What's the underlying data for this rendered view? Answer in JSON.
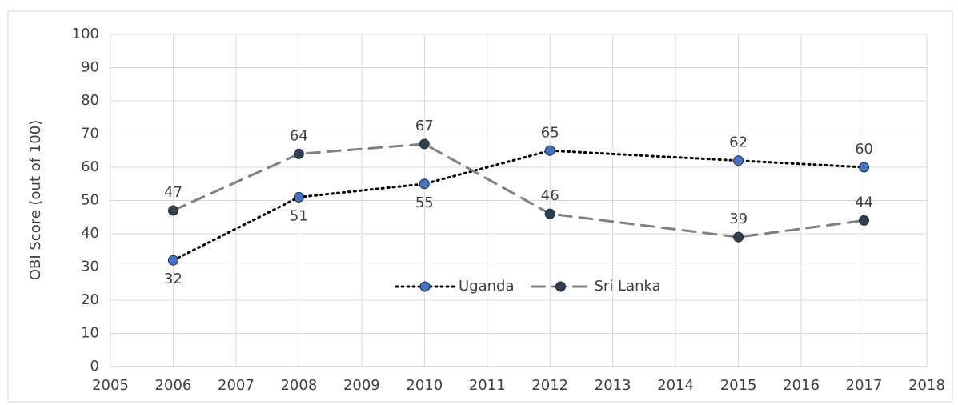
{
  "chart_data": {
    "type": "line",
    "y_label": "OBI Score (out of 100)",
    "xlim": [
      2005,
      2018
    ],
    "xticks": [
      2005,
      2006,
      2007,
      2008,
      2009,
      2010,
      2011,
      2012,
      2013,
      2014,
      2015,
      2016,
      2017,
      2018
    ],
    "ylim": [
      0,
      100
    ],
    "yticks": [
      0,
      10,
      20,
      30,
      40,
      50,
      60,
      70,
      80,
      90,
      100
    ],
    "grid": true,
    "legend": "center",
    "series": [
      {
        "name": "Uganda",
        "color": "#4472c4",
        "line_color": "#000000",
        "style": "dotted",
        "x": [
          2006,
          2008,
          2010,
          2012,
          2015,
          2017
        ],
        "values": [
          32,
          51,
          55,
          65,
          62,
          60
        ]
      },
      {
        "name": "Sri Lanka",
        "color": "#2e3f50",
        "line_color": "#808080",
        "style": "dashed",
        "x": [
          2006,
          2008,
          2010,
          2012,
          2015,
          2017
        ],
        "values": [
          47,
          64,
          67,
          46,
          39,
          44
        ]
      }
    ]
  }
}
